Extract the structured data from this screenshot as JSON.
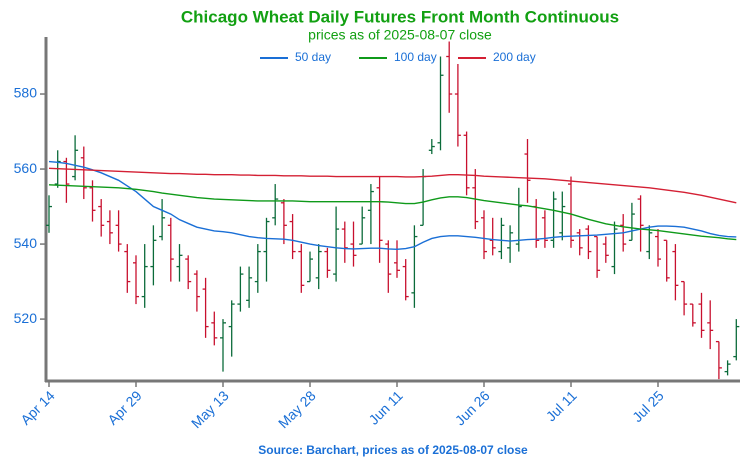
{
  "chart_data": {
    "type": "ohlc",
    "title": "Chicago Wheat Daily Futures Front Month Continuous",
    "subtitle": "prices as of 2025-08-07 close",
    "source": "Source: Barchart, prices as of 2025-08-07 close",
    "categories": [
      "Apr 14",
      null,
      null,
      null,
      null,
      null,
      null,
      null,
      null,
      null,
      "Apr 29",
      null,
      null,
      null,
      null,
      null,
      null,
      null,
      null,
      null,
      "May 13",
      null,
      null,
      null,
      null,
      null,
      null,
      null,
      null,
      null,
      "May 28",
      null,
      null,
      null,
      null,
      null,
      null,
      null,
      null,
      null,
      "Jun 11",
      null,
      null,
      null,
      null,
      null,
      null,
      null,
      null,
      null,
      "Jun 26",
      null,
      null,
      null,
      null,
      null,
      null,
      null,
      null,
      null,
      "Jul 11",
      null,
      null,
      null,
      null,
      null,
      null,
      null,
      null,
      null,
      "Jul 25",
      null,
      null,
      null,
      null,
      null,
      null,
      null,
      null,
      null
    ],
    "open": [
      545,
      556,
      562,
      558,
      563,
      555,
      550,
      546,
      545,
      538,
      535,
      526,
      534,
      542,
      545,
      534,
      536,
      532,
      528,
      519,
      515,
      518,
      524,
      525,
      530,
      538,
      547,
      551,
      546,
      538,
      530,
      531,
      538,
      532,
      544,
      540,
      540,
      549,
      555,
      540,
      535,
      534,
      527,
      545,
      565,
      567,
      590,
      580,
      569,
      555,
      547,
      541,
      538,
      539,
      540,
      564,
      550,
      547,
      541,
      543,
      556,
      543,
      544,
      542,
      540,
      534,
      545,
      541,
      552,
      538,
      542,
      541,
      538,
      530,
      524,
      524,
      519,
      514,
      506,
      510
    ],
    "high": [
      553,
      565,
      563,
      569,
      566,
      557,
      552,
      549,
      549,
      540,
      537,
      540,
      545,
      552,
      547,
      540,
      537,
      533,
      531,
      522,
      520,
      525,
      534,
      534,
      540,
      547,
      556,
      552,
      548,
      540,
      538,
      540,
      539,
      550,
      546,
      546,
      550,
      556,
      558,
      541,
      541,
      536,
      545,
      560,
      568,
      590,
      594,
      588,
      570,
      560,
      549,
      547,
      547,
      545,
      555,
      568,
      552,
      549,
      554,
      554,
      558,
      544,
      545,
      542,
      542,
      546,
      548,
      551,
      553,
      545,
      544,
      541,
      540,
      530,
      524,
      527,
      525,
      514,
      509,
      520
    ],
    "low": [
      543,
      555,
      551,
      557,
      552,
      546,
      542,
      540,
      538,
      527,
      524,
      523,
      529,
      541,
      530,
      530,
      528,
      522,
      515,
      513,
      506,
      510,
      522,
      523,
      527,
      530,
      545,
      540,
      536,
      527,
      530,
      528,
      531,
      530,
      535,
      534,
      540,
      540,
      535,
      527,
      531,
      525,
      523,
      545,
      564,
      565,
      575,
      566,
      553,
      544,
      536,
      537,
      536,
      535,
      538,
      551,
      539,
      539,
      539,
      541,
      539,
      537,
      536,
      531,
      535,
      532,
      538,
      541,
      538,
      536,
      534,
      530,
      525,
      521,
      518,
      515,
      512,
      504,
      505,
      509
    ],
    "close": [
      550,
      562,
      556,
      565,
      555,
      549,
      545,
      543,
      540,
      530,
      526,
      534,
      541,
      547,
      536,
      537,
      530,
      526,
      518,
      515,
      519,
      524,
      532,
      531,
      538,
      546,
      552,
      545,
      538,
      529,
      536,
      538,
      533,
      544,
      539,
      537,
      547,
      554,
      541,
      532,
      533,
      526,
      542,
      558,
      566,
      585,
      580,
      569,
      555,
      546,
      538,
      539,
      545,
      543,
      550,
      557,
      541,
      541,
      552,
      550,
      541,
      539,
      538,
      533,
      537,
      544,
      540,
      548,
      545,
      543,
      536,
      531,
      529,
      524,
      519,
      517,
      517,
      507,
      508,
      518
    ],
    "up_color": "#0b6b3a",
    "down_color": "#c8102e",
    "series": [
      {
        "name": "50 day",
        "color": "#1a6fd6",
        "values": [
          562,
          561.8,
          561.5,
          561,
          560.5,
          559.8,
          559,
          558,
          557,
          555.5,
          554,
          552,
          550,
          549,
          548,
          546.5,
          545.5,
          544.5,
          544,
          543.5,
          543.3,
          543,
          542.5,
          542,
          541.7,
          541.5,
          541.4,
          541.3,
          541,
          540.5,
          540,
          539.6,
          539.3,
          539,
          538.8,
          538.7,
          538.8,
          538.9,
          538.9,
          538.7,
          538.6,
          538.8,
          539.3,
          540.5,
          541.5,
          542,
          542.2,
          542.2,
          542,
          541.8,
          541.5,
          541.2,
          541,
          540.8,
          541,
          541.2,
          541.3,
          541.5,
          541.8,
          542,
          542.1,
          542.2,
          542.3,
          542.4,
          542.6,
          542.8,
          543,
          543.5,
          544,
          544.5,
          544.8,
          544.8,
          544.7,
          544.5,
          544,
          543.5,
          542.8,
          542.3,
          542,
          541.9
        ]
      },
      {
        "name": "100 day",
        "color": "#0f9a1a",
        "values": [
          555.8,
          555.7,
          555.6,
          555.5,
          555.4,
          555.3,
          555.2,
          555.1,
          555,
          554.8,
          554.6,
          554.3,
          554,
          553.6,
          553.3,
          553,
          552.7,
          552.4,
          552.2,
          552,
          551.9,
          551.8,
          551.7,
          551.6,
          551.5,
          551.5,
          551.5,
          551.5,
          551.5,
          551.4,
          551.3,
          551.3,
          551.3,
          551.3,
          551.3,
          551.3,
          551.3,
          551.3,
          551.3,
          551.2,
          551,
          550.8,
          550.8,
          551.2,
          551.8,
          552.3,
          552.6,
          552.6,
          552.4,
          552,
          551.6,
          551.3,
          551,
          550.7,
          550.4,
          550.2,
          549.8,
          549.4,
          549,
          548.5,
          548,
          547.3,
          546.6,
          546,
          545.4,
          545,
          544.6,
          544.3,
          544,
          543.8,
          543.6,
          543.3,
          543,
          542.7,
          542.4,
          542.1,
          541.9,
          541.7,
          541.4,
          541.2
        ]
      },
      {
        "name": "200 day",
        "color": "#d42034",
        "values": [
          560.2,
          560.1,
          560,
          559.9,
          559.8,
          559.7,
          559.6,
          559.5,
          559.4,
          559.3,
          559.2,
          559.1,
          559,
          558.9,
          558.8,
          558.8,
          558.7,
          558.6,
          558.6,
          558.5,
          558.5,
          558.5,
          558.4,
          558.4,
          558.3,
          558.3,
          558.3,
          558.2,
          558.2,
          558.2,
          558.1,
          558.1,
          558.1,
          558,
          558,
          558,
          558,
          558,
          558,
          558,
          558,
          557.9,
          557.9,
          558,
          558.1,
          558.3,
          558.5,
          558.5,
          558.4,
          558.3,
          558.1,
          558,
          557.9,
          557.8,
          557.7,
          557.6,
          557.5,
          557.4,
          557.2,
          557,
          556.8,
          556.6,
          556.4,
          556.2,
          556,
          555.8,
          555.6,
          555.4,
          555.2,
          555,
          554.7,
          554.4,
          554.1,
          553.8,
          553.4,
          553,
          552.5,
          552,
          551.5,
          551
        ]
      }
    ],
    "ylim": [
      503.5,
      595.2
    ],
    "yticks": [
      520,
      540,
      560,
      580
    ],
    "grid": false,
    "legend": "top"
  }
}
